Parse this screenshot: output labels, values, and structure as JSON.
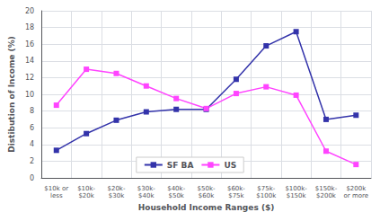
{
  "chart_data": {
    "type": "line",
    "categories": [
      "$10k or\nless",
      "$10k-\n$20k",
      "$20k-\n$30k",
      "$30k-\n$40k",
      "$40k-\n$50k",
      "$50k-\n$60k",
      "$60k-\n$75k",
      "$75k-\n$100k",
      "$100k-\n$150k",
      "$150k-\n$200k",
      "$200k\nor more"
    ],
    "series": [
      {
        "name": "SF BA",
        "color": "#3333AA",
        "marker": "square",
        "values": [
          3.3,
          5.3,
          6.9,
          7.9,
          8.2,
          8.2,
          11.8,
          15.8,
          17.5,
          7.0,
          7.5
        ]
      },
      {
        "name": "US",
        "color": "#FF44FF",
        "marker": "square",
        "values": [
          8.7,
          13.0,
          12.5,
          11.0,
          9.5,
          8.3,
          10.1,
          10.9,
          9.9,
          3.2,
          1.6
        ]
      }
    ],
    "xlabel": "Household Income Ranges ($)",
    "ylabel": "Distibution of Income (%)",
    "ylim": [
      0,
      20
    ],
    "yticks": [
      0,
      2,
      4,
      6,
      8,
      10,
      12,
      14,
      16,
      18,
      20
    ],
    "grid": true,
    "legend": "bottom"
  }
}
